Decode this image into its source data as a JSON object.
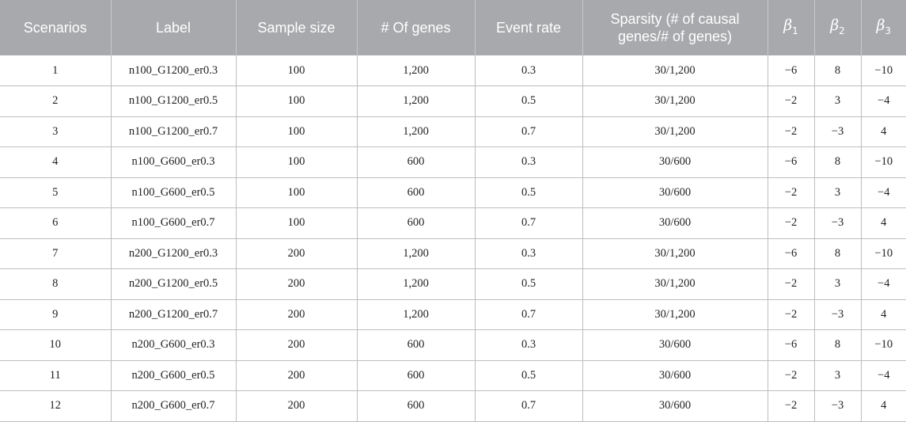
{
  "headers": {
    "scenarios": "Scenarios",
    "label": "Label",
    "sample_size": "Sample size",
    "num_genes": "# Of genes",
    "event_rate": "Event rate",
    "sparsity": "Sparsity (# of causal genes/# of genes)",
    "beta_symbol": "β",
    "beta1_sub": "1",
    "beta2_sub": "2",
    "beta3_sub": "3"
  },
  "rows": [
    {
      "scenario": "1",
      "label": "n100_G1200_er0.3",
      "sample_size": "100",
      "genes": "1,200",
      "event_rate": "0.3",
      "sparsity": "30/1,200",
      "b1": "−6",
      "b2": "8",
      "b3": "−10"
    },
    {
      "scenario": "2",
      "label": "n100_G1200_er0.5",
      "sample_size": "100",
      "genes": "1,200",
      "event_rate": "0.5",
      "sparsity": "30/1,200",
      "b1": "−2",
      "b2": "3",
      "b3": "−4"
    },
    {
      "scenario": "3",
      "label": "n100_G1200_er0.7",
      "sample_size": "100",
      "genes": "1,200",
      "event_rate": "0.7",
      "sparsity": "30/1,200",
      "b1": "−2",
      "b2": "−3",
      "b3": "4"
    },
    {
      "scenario": "4",
      "label": "n100_G600_er0.3",
      "sample_size": "100",
      "genes": "600",
      "event_rate": "0.3",
      "sparsity": "30/600",
      "b1": "−6",
      "b2": "8",
      "b3": "−10"
    },
    {
      "scenario": "5",
      "label": "n100_G600_er0.5",
      "sample_size": "100",
      "genes": "600",
      "event_rate": "0.5",
      "sparsity": "30/600",
      "b1": "−2",
      "b2": "3",
      "b3": "−4"
    },
    {
      "scenario": "6",
      "label": "n100_G600_er0.7",
      "sample_size": "100",
      "genes": "600",
      "event_rate": "0.7",
      "sparsity": "30/600",
      "b1": "−2",
      "b2": "−3",
      "b3": "4"
    },
    {
      "scenario": "7",
      "label": "n200_G1200_er0.3",
      "sample_size": "200",
      "genes": "1,200",
      "event_rate": "0.3",
      "sparsity": "30/1,200",
      "b1": "−6",
      "b2": "8",
      "b3": "−10"
    },
    {
      "scenario": "8",
      "label": "n200_G1200_er0.5",
      "sample_size": "200",
      "genes": "1,200",
      "event_rate": "0.5",
      "sparsity": "30/1,200",
      "b1": "−2",
      "b2": "3",
      "b3": "−4"
    },
    {
      "scenario": "9",
      "label": "n200_G1200_er0.7",
      "sample_size": "200",
      "genes": "1,200",
      "event_rate": "0.7",
      "sparsity": "30/1,200",
      "b1": "−2",
      "b2": "−3",
      "b3": "4"
    },
    {
      "scenario": "10",
      "label": "n200_G600_er0.3",
      "sample_size": "200",
      "genes": "600",
      "event_rate": "0.3",
      "sparsity": "30/600",
      "b1": "−6",
      "b2": "8",
      "b3": "−10"
    },
    {
      "scenario": "11",
      "label": "n200_G600_er0.5",
      "sample_size": "200",
      "genes": "600",
      "event_rate": "0.5",
      "sparsity": "30/600",
      "b1": "−2",
      "b2": "3",
      "b3": "−4"
    },
    {
      "scenario": "12",
      "label": "n200_G600_er0.7",
      "sample_size": "200",
      "genes": "600",
      "event_rate": "0.7",
      "sparsity": "30/600",
      "b1": "−2",
      "b2": "−3",
      "b3": "4"
    }
  ]
}
